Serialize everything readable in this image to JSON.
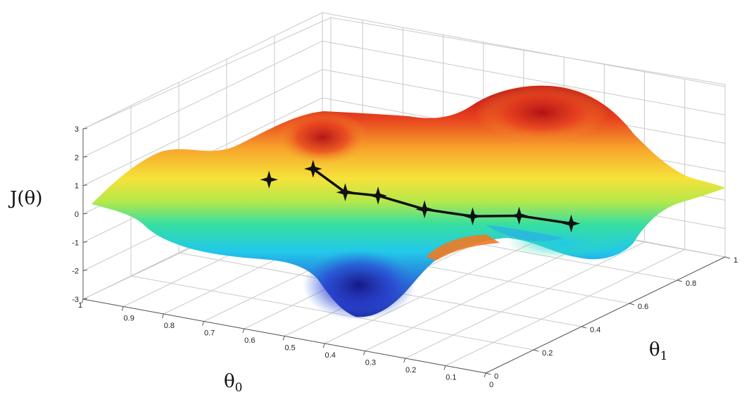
{
  "chart_data": {
    "type": "surface",
    "title": "",
    "axes": {
      "theta0": {
        "label": "θ",
        "sub": "0",
        "range": [
          0,
          1
        ],
        "ticks": [
          "1",
          "0.9",
          "0.8",
          "0.7",
          "0.6",
          "0.5",
          "0.4",
          "0.3",
          "0.2",
          "0.1",
          "0"
        ]
      },
      "theta1": {
        "label": "θ",
        "sub": "1",
        "range": [
          0,
          1
        ],
        "ticks": [
          "0",
          "0.2",
          "0.4",
          "0.6",
          "0.8",
          "1"
        ]
      },
      "J": {
        "label": "J(θ)",
        "range": [
          -3,
          3
        ],
        "ticks": [
          "3",
          "2",
          "1",
          "0",
          "-1",
          "-2",
          "-3"
        ]
      }
    },
    "colormap": [
      "#1e1ea0",
      "#2a6bd8",
      "#22c8ea",
      "#37dfa0",
      "#b6e84a",
      "#f6e23a",
      "#f7a52b",
      "#e8431f",
      "#c01418"
    ],
    "descent_path": [
      {
        "theta0": 0.55,
        "theta1": 0.02,
        "J": 2.3
      },
      {
        "theta0": 0.5,
        "theta1": 0.12,
        "J": 2.4
      },
      {
        "theta0": 0.45,
        "theta1": 0.17,
        "J": 1.5
      },
      {
        "theta0": 0.41,
        "theta1": 0.24,
        "J": 1.2
      },
      {
        "theta0": 0.36,
        "theta1": 0.35,
        "J": 0.4
      },
      {
        "theta0": 0.3,
        "theta1": 0.45,
        "J": -0.1
      },
      {
        "theta0": 0.25,
        "theta1": 0.56,
        "J": -0.4
      },
      {
        "theta0": 0.18,
        "theta1": 0.66,
        "J": -0.9
      }
    ]
  }
}
